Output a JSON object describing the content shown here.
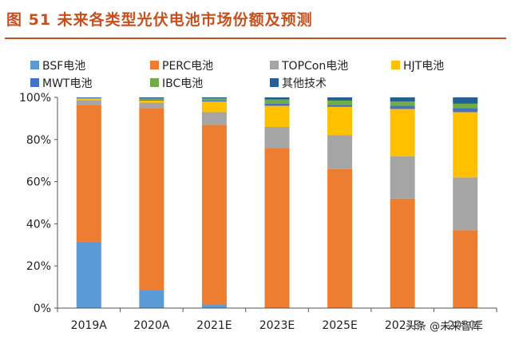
{
  "title": "图 51 未来各类型光伏电池市场份额及预测",
  "watermark": "头条 @未来智库",
  "chart_data": {
    "type": "bar",
    "stacked": true,
    "categories": [
      "2019A",
      "2020A",
      "2021E",
      "2023E",
      "2025E",
      "2027E",
      "2030E"
    ],
    "ylim": [
      0,
      100
    ],
    "yticks": [
      0,
      20,
      40,
      60,
      80,
      100
    ],
    "ytick_labels": [
      "0%",
      "20%",
      "40%",
      "60%",
      "80%",
      "100%"
    ],
    "grid": false,
    "legend_position": "top",
    "series": [
      {
        "name": "BSF电池",
        "color": "#5b9bd5",
        "values": [
          31.5,
          8.5,
          1.5,
          0,
          0,
          0,
          0
        ]
      },
      {
        "name": "PERC电池",
        "color": "#ed7d31",
        "values": [
          65,
          86.5,
          85.5,
          76,
          66,
          52,
          37
        ]
      },
      {
        "name": "TOPCon电池",
        "color": "#a5a5a5",
        "values": [
          2,
          2.5,
          6,
          10,
          16,
          20,
          25
        ]
      },
      {
        "name": "HJT电池",
        "color": "#ffc000",
        "values": [
          1,
          1,
          5,
          10,
          13.5,
          22.5,
          31
        ]
      },
      {
        "name": "MWT电池",
        "color": "#4472c4",
        "values": [
          0.5,
          0.5,
          0.5,
          1,
          1,
          1.5,
          2
        ]
      },
      {
        "name": "IBC电池",
        "color": "#70ad47",
        "values": [
          0,
          0.5,
          1,
          2,
          2,
          2,
          2
        ]
      },
      {
        "name": "其他技术",
        "color": "#255e91",
        "values": [
          0,
          0.5,
          0.5,
          1,
          1.5,
          2,
          3
        ]
      }
    ]
  }
}
